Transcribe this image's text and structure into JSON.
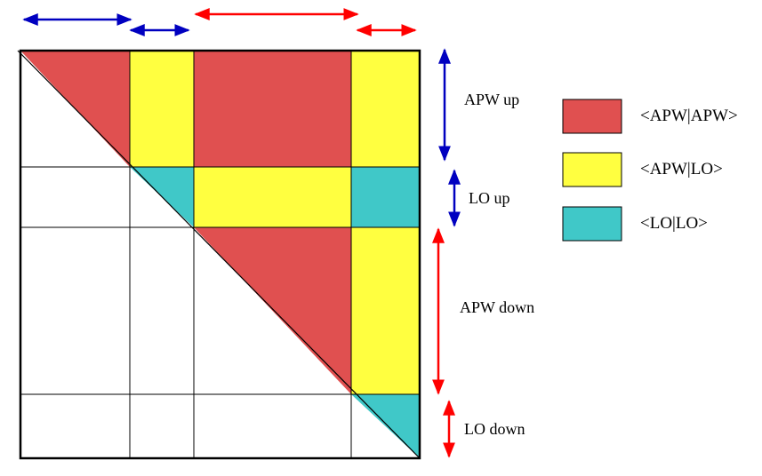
{
  "blocks": [
    {
      "key": "apw_up",
      "label": "APW up",
      "arrow_color": "#0000c0"
    },
    {
      "key": "lo_up",
      "label": "LO up",
      "arrow_color": "#0000c0"
    },
    {
      "key": "apw_down",
      "label": "APW down",
      "arrow_color": "#ff0000"
    },
    {
      "key": "lo_down",
      "label": "LO down",
      "arrow_color": "#ff0000"
    }
  ],
  "legend": [
    {
      "key": "apw_apw",
      "label": "<APW|APW>",
      "color": "#e05050"
    },
    {
      "key": "apw_lo",
      "label": "<APW|LO>",
      "color": "#ffff40"
    },
    {
      "key": "lo_lo",
      "label": "<LO|LO>",
      "color": "#40c8c8"
    }
  ]
}
